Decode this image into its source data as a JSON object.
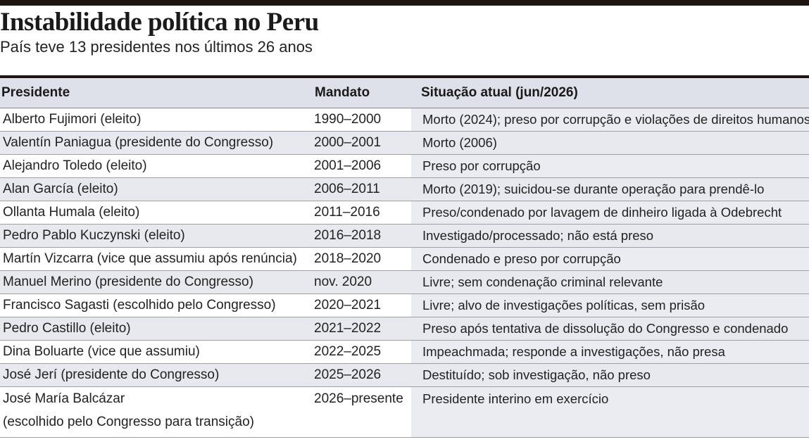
{
  "header": {
    "title": "Instabilidade política no Peru",
    "subtitle": "País teve 13 presidentes nos últimos 26 anos"
  },
  "table": {
    "columns": [
      "Presidente",
      "Mandato",
      "Situação atual (jun/2026)"
    ],
    "rows": [
      {
        "presidente": "Alberto Fujimori (eleito)",
        "mandato": "1990–2000",
        "situacao": "Morto (2024); preso por corrupção e violações de direitos humanos"
      },
      {
        "presidente": "Valentín Paniagua (presidente do Congresso)",
        "mandato": "2000–2001",
        "situacao": "Morto (2006)"
      },
      {
        "presidente": "Alejandro Toledo (eleito)",
        "mandato": "2001–2006",
        "situacao": "Preso por corrupção"
      },
      {
        "presidente": "Alan García (eleito)",
        "mandato": "2006–2011",
        "situacao": "Morto (2019); suicidou-se durante operação para prendê-lo"
      },
      {
        "presidente": "Ollanta Humala (eleito)",
        "mandato": "2011–2016",
        "situacao": "Preso/condenado por lavagem de dinheiro ligada à Odebrecht"
      },
      {
        "presidente": "Pedro Pablo Kuczynski (eleito)",
        "mandato": "2016–2018",
        "situacao": "Investigado/processado; não está preso"
      },
      {
        "presidente": "Martín Vizcarra (vice que assumiu após renúncia)",
        "mandato": "2018–2020",
        "situacao": "Condenado e preso por corrupção"
      },
      {
        "presidente": "Manuel Merino (presidente do Congresso)",
        "mandato": "nov. 2020",
        "situacao": "Livre; sem condenação criminal relevante"
      },
      {
        "presidente": "Francisco Sagasti (escolhido pelo Congresso)",
        "mandato": "2020–2021",
        "situacao": "Livre; alvo de investigações políticas, sem prisão"
      },
      {
        "presidente": "Pedro Castillo (eleito)",
        "mandato": "2021–2022",
        "situacao": "Preso após tentativa de dissolução do Congresso e condenado"
      },
      {
        "presidente": "Dina Boluarte (vice que assumiu)",
        "mandato": "2022–2025",
        "situacao": "Impeachmada; responde a investigações, não presa"
      },
      {
        "presidente": "José Jerí (presidente do Congresso)",
        "mandato": "2025–2026",
        "situacao": "Destituído; sob investigação, não preso"
      },
      {
        "presidente": "José María Balcázar\n(escolhido pelo Congresso para transição)",
        "mandato": "2026–presente",
        "situacao": "Presidente interino em exercício"
      }
    ]
  }
}
